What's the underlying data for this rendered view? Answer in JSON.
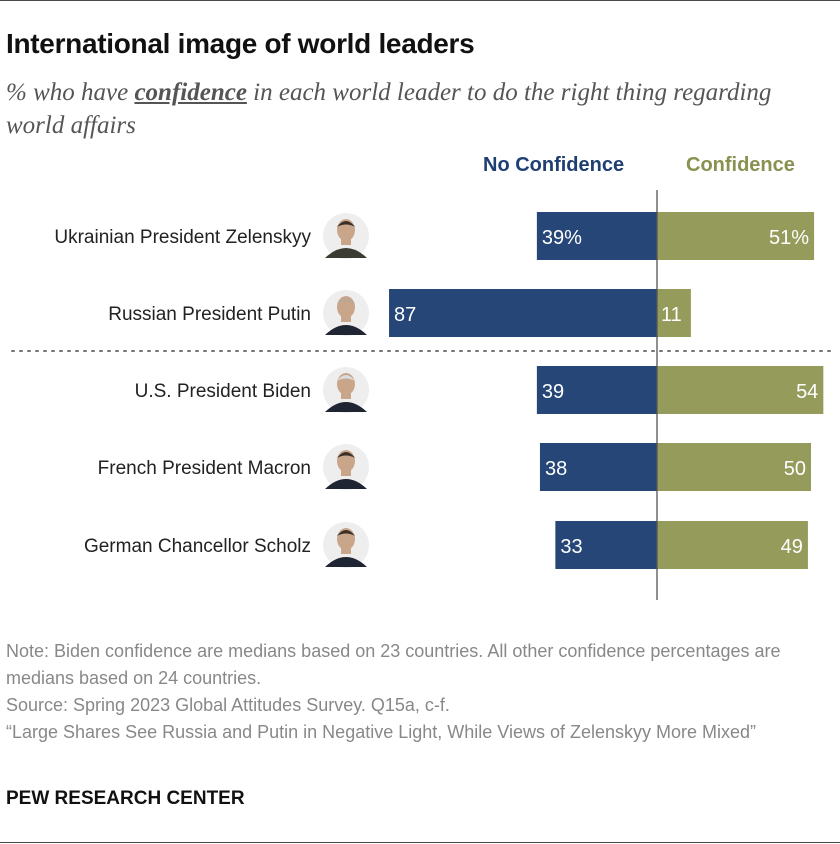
{
  "title": "International image of world leaders",
  "subtitle": {
    "before": "% who have ",
    "emphasis": "confidence",
    "after": " in each world leader to do the right thing regarding world affairs"
  },
  "legend": {
    "no_confidence": "No Confidence",
    "confidence": "Confidence"
  },
  "colors": {
    "no_confidence": "#254677",
    "confidence": "#959b5a",
    "divider": "#555555"
  },
  "chart_data": {
    "type": "bar",
    "orientation": "horizontal-diverging",
    "categories": [
      "Ukrainian President Zelenskyy",
      "Russian President Putin",
      "U.S. President Biden",
      "French President Macron",
      "German Chancellor Scholz"
    ],
    "series": [
      {
        "name": "No Confidence",
        "values": [
          39,
          87,
          39,
          38,
          33
        ]
      },
      {
        "name": "Confidence",
        "values": [
          51,
          11,
          54,
          50,
          49
        ]
      }
    ],
    "labels": {
      "no_confidence": [
        "39%",
        "87",
        "39",
        "38",
        "33"
      ],
      "confidence": [
        "51%",
        "11",
        "54",
        "50",
        "49"
      ]
    },
    "portrait_icons": [
      "zelenskyy-portrait-icon",
      "putin-portrait-icon",
      "biden-portrait-icon",
      "macron-portrait-icon",
      "scholz-portrait-icon"
    ],
    "separator_after_index": 1
  },
  "notes": {
    "note": "Note: Biden confidence are medians based on 23 countries. All other confidence percentages are medians based on 24 countries.",
    "source": "Source: Spring 2023 Global Attitudes Survey. Q15a, c-f.",
    "report": "“Large Shares See Russia and Putin in Negative Light, While Views of Zelenskyy More Mixed”"
  },
  "brand": "PEW RESEARCH CENTER"
}
